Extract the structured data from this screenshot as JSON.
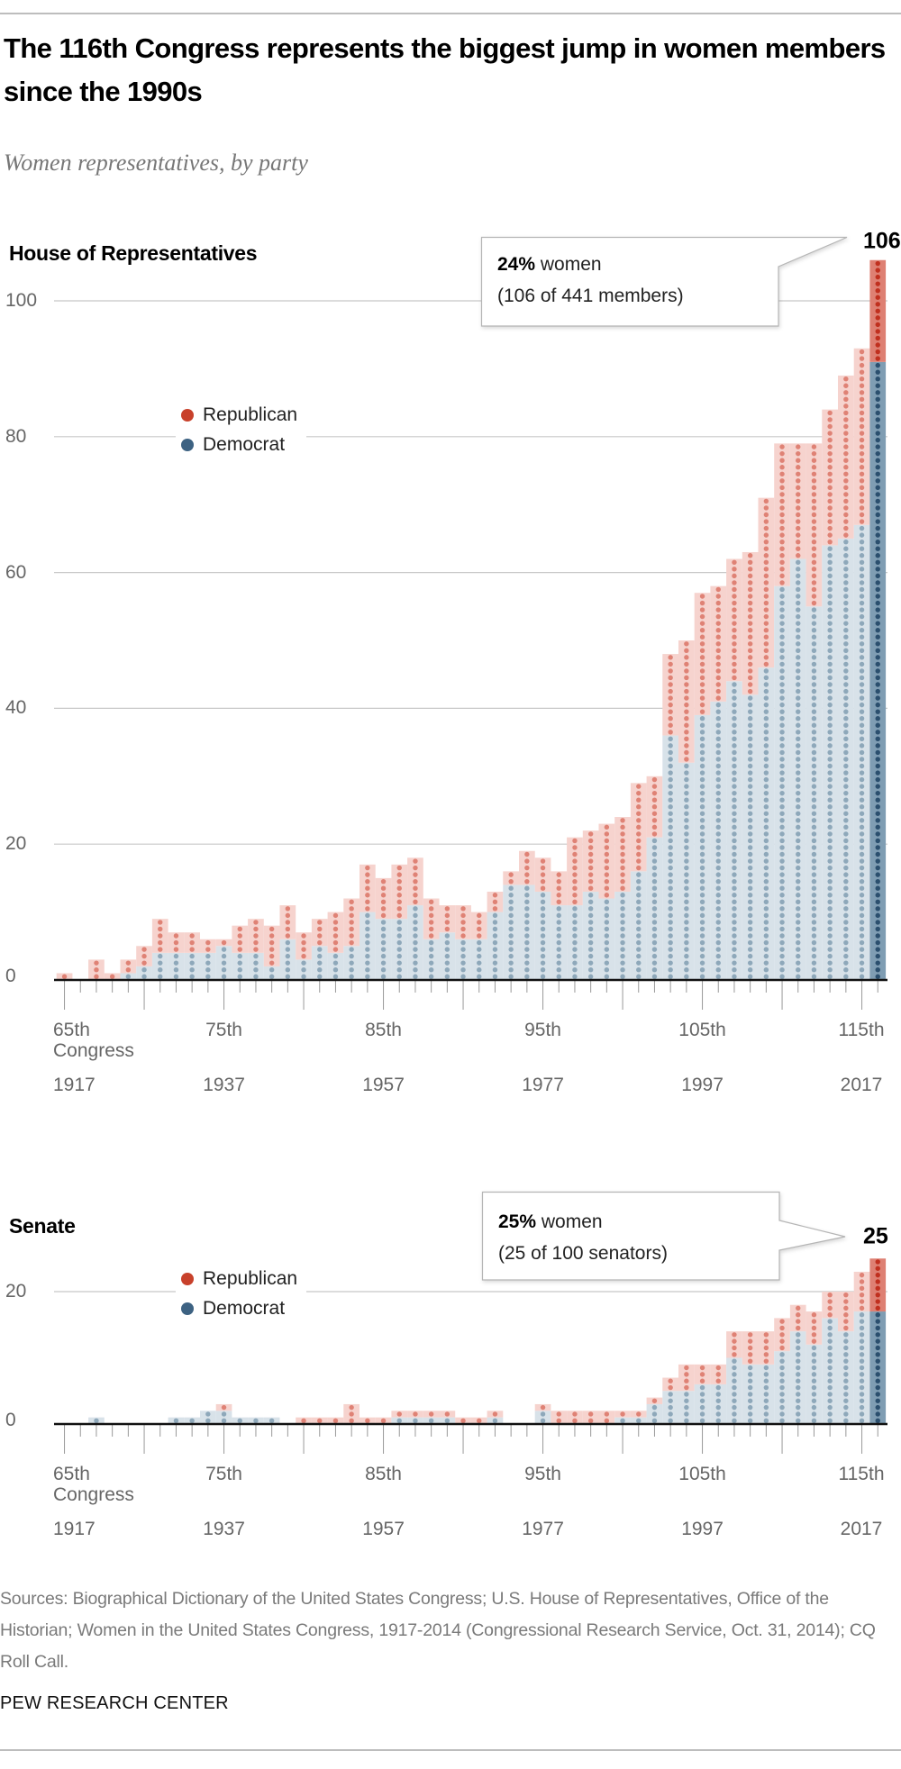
{
  "title": "The 116th Congress represents the biggest jump in women members since the 1990s",
  "subtitle": "Women representatives, by party",
  "legend": {
    "republican": "Republican",
    "democrat": "Democrat"
  },
  "colors": {
    "republican": "#c8412b",
    "democrat": "#3d6282",
    "republican_dot": "#df8275",
    "republican_fill": "#f6d3ce",
    "democrat_dot": "#8ea8ba",
    "democrat_fill": "#d8e2e9",
    "republican_highlight_dot": "#c0301f",
    "republican_highlight_fill": "#de8073",
    "democrat_highlight_dot": "#2b4f6e",
    "democrat_highlight_fill": "#7f9db3"
  },
  "house": {
    "label": "House of Representatives",
    "total_label": "106",
    "callout_pct": "24%",
    "callout_word": " women",
    "callout_detail": "(106 of 441 members)"
  },
  "senate": {
    "label": "Senate",
    "total_label": "25",
    "callout_pct": "25%",
    "callout_word": " women",
    "callout_detail": "(25 of 100 senators)"
  },
  "chart_data": [
    {
      "type": "bar",
      "stacked": true,
      "title": "House of Representatives",
      "categories": [
        65,
        66,
        67,
        68,
        69,
        70,
        71,
        72,
        73,
        74,
        75,
        76,
        77,
        78,
        79,
        80,
        81,
        82,
        83,
        84,
        85,
        86,
        87,
        88,
        89,
        90,
        91,
        92,
        93,
        94,
        95,
        96,
        97,
        98,
        99,
        100,
        101,
        102,
        103,
        104,
        105,
        106,
        107,
        108,
        109,
        110,
        111,
        112,
        113,
        114,
        115,
        116
      ],
      "series": [
        {
          "name": "Democrat",
          "values": [
            0,
            0,
            0,
            0,
            1,
            2,
            4,
            4,
            4,
            4,
            5,
            4,
            4,
            2,
            6,
            3,
            5,
            4,
            5,
            10,
            9,
            9,
            11,
            6,
            7,
            6,
            6,
            10,
            14,
            14,
            13,
            11,
            11,
            13,
            12,
            13,
            16,
            21,
            36,
            32,
            39,
            41,
            44,
            42,
            46,
            58,
            62,
            55,
            64,
            65,
            67,
            91
          ]
        },
        {
          "name": "Republican",
          "values": [
            1,
            0,
            3,
            1,
            2,
            3,
            5,
            3,
            3,
            2,
            1,
            4,
            5,
            6,
            5,
            4,
            4,
            6,
            7,
            7,
            6,
            8,
            7,
            6,
            4,
            5,
            4,
            3,
            2,
            5,
            5,
            5,
            10,
            9,
            11,
            11,
            13,
            9,
            12,
            18,
            18,
            17,
            18,
            21,
            25,
            21,
            17,
            24,
            20,
            24,
            26,
            15
          ]
        }
      ],
      "ylim": [
        0,
        106
      ],
      "yticks": [
        "0",
        "20",
        "40",
        "60",
        "80",
        "100"
      ],
      "xtick_labels": [
        "65th",
        "75th",
        "85th",
        "95th",
        "105th",
        "115th"
      ],
      "xtick_sublabel": "Congress",
      "year_labels": [
        "1917",
        "1937",
        "1957",
        "1977",
        "1997",
        "2017"
      ],
      "grid": true,
      "legend_placement": "top-left"
    },
    {
      "type": "bar",
      "stacked": true,
      "title": "Senate",
      "categories": [
        65,
        66,
        67,
        68,
        69,
        70,
        71,
        72,
        73,
        74,
        75,
        76,
        77,
        78,
        79,
        80,
        81,
        82,
        83,
        84,
        85,
        86,
        87,
        88,
        89,
        90,
        91,
        92,
        93,
        94,
        95,
        96,
        97,
        98,
        99,
        100,
        101,
        102,
        103,
        104,
        105,
        106,
        107,
        108,
        109,
        110,
        111,
        112,
        113,
        114,
        115,
        116
      ],
      "series": [
        {
          "name": "Democrat",
          "values": [
            0,
            0,
            1,
            0,
            0,
            0,
            0,
            1,
            1,
            2,
            2,
            1,
            1,
            1,
            0,
            0,
            0,
            0,
            0,
            0,
            0,
            1,
            1,
            1,
            1,
            0,
            0,
            1,
            0,
            0,
            2,
            0,
            0,
            0,
            0,
            1,
            1,
            3,
            5,
            5,
            6,
            6,
            10,
            9,
            9,
            11,
            14,
            12,
            16,
            14,
            17,
            17
          ]
        },
        {
          "name": "Republican",
          "values": [
            0,
            0,
            0,
            0,
            0,
            0,
            0,
            0,
            0,
            0,
            1,
            0,
            0,
            0,
            0,
            1,
            1,
            1,
            3,
            1,
            1,
            1,
            1,
            1,
            1,
            1,
            1,
            1,
            0,
            0,
            1,
            2,
            2,
            2,
            2,
            1,
            1,
            1,
            2,
            4,
            3,
            3,
            4,
            5,
            5,
            5,
            4,
            5,
            4,
            6,
            6,
            8
          ]
        }
      ],
      "ylim": [
        0,
        25
      ],
      "yticks": [
        "0",
        "20"
      ],
      "xtick_labels": [
        "65th",
        "75th",
        "85th",
        "95th",
        "105th",
        "115th"
      ],
      "xtick_sublabel": "Congress",
      "year_labels": [
        "1917",
        "1937",
        "1957",
        "1977",
        "1997",
        "2017"
      ],
      "grid": true,
      "legend_placement": "top-left"
    }
  ],
  "footer": {
    "sources": "Sources: Biographical Dictionary of the United States Congress; U.S. House of Representatives, Office of the Historian; Women in the United States Congress, 1917-2014 (Congressional Research Service, Oct. 31, 2014); CQ Roll Call.",
    "brand": "PEW RESEARCH CENTER"
  }
}
